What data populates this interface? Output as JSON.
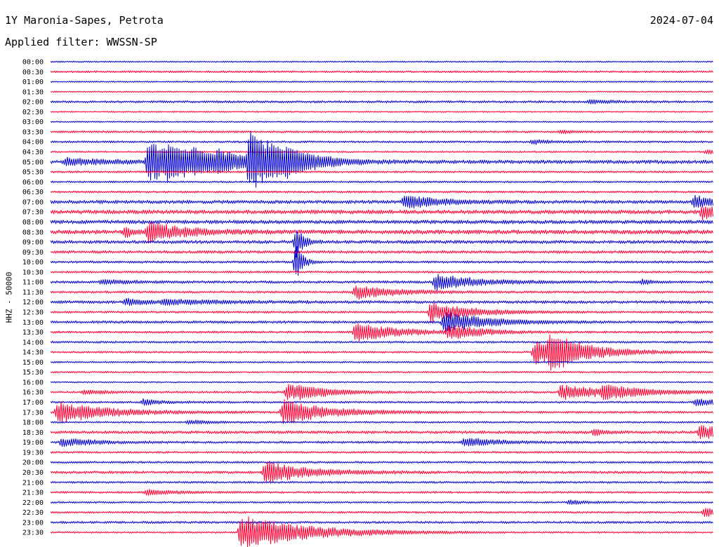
{
  "header": {
    "station": "1Y Maronia-Sapes, Petrota",
    "date": "2024-07-04",
    "filter": "Applied filter: WWSSN-SP",
    "scale": "HHZ - 50000"
  },
  "colors": {
    "even_row": "#0000cc",
    "odd_row": "#ff0033",
    "background": "#ffffff"
  },
  "chart_data": {
    "type": "helicorder",
    "channel": "HHZ",
    "row_duration_minutes": 30,
    "row_labels": [
      "00:00",
      "00:30",
      "01:00",
      "01:30",
      "02:00",
      "02:30",
      "03:00",
      "03:30",
      "04:00",
      "04:30",
      "05:00",
      "05:30",
      "06:00",
      "06:30",
      "07:00",
      "07:30",
      "08:00",
      "08:30",
      "09:00",
      "09:30",
      "10:00",
      "10:30",
      "11:00",
      "11:30",
      "12:00",
      "12:30",
      "13:00",
      "13:30",
      "14:00",
      "14:30",
      "15:00",
      "15:30",
      "16:00",
      "16:30",
      "17:00",
      "17:30",
      "18:00",
      "18:30",
      "19:00",
      "19:30",
      "20:00",
      "20:30",
      "21:00",
      "21:30",
      "22:00",
      "22:30",
      "23:00",
      "23:30"
    ],
    "row_colors": [
      "blue",
      "red"
    ],
    "noise_level": [
      1,
      1.4,
      1,
      1,
      1.6,
      1,
      1,
      1.5,
      1.4,
      1.2,
      2.6,
      1.4,
      1.3,
      1.5,
      2.4,
      2.8,
      2.6,
      3,
      2.3,
      2,
      1.6,
      1.5,
      1.8,
      1.6,
      2,
      1.5,
      1.8,
      1.6,
      1.5,
      1.4,
      1.2,
      1.2,
      1,
      1.5,
      1.4,
      1.6,
      1.3,
      2,
      1.6,
      1.4,
      1.5,
      1.8,
      1.5,
      1.4,
      1.3,
      1.4,
      1.6,
      1.2
    ],
    "events": [
      {
        "row": 4,
        "minute": 24.4,
        "amp": 2.5,
        "dur": 1.2
      },
      {
        "row": 7,
        "minute": 23.1,
        "amp": 2,
        "dur": 0.6
      },
      {
        "row": 8,
        "minute": 21.8,
        "amp": 3,
        "dur": 1
      },
      {
        "row": 9,
        "minute": 29.7,
        "amp": 3,
        "dur": 1.5
      },
      {
        "row": 10,
        "minute": 0.7,
        "amp": 5,
        "dur": 1.8
      },
      {
        "row": 10,
        "minute": 4.4,
        "amp": 30,
        "dur": 1.8
      },
      {
        "row": 10,
        "minute": 5.3,
        "amp": 12,
        "dur": 1.5
      },
      {
        "row": 10,
        "minute": 6.5,
        "amp": 9,
        "dur": 1.2
      },
      {
        "row": 10,
        "minute": 7.6,
        "amp": 8,
        "dur": 1.2
      },
      {
        "row": 10,
        "minute": 9,
        "amp": 40,
        "dur": 1.3
      },
      {
        "row": 10,
        "minute": 9.8,
        "amp": 10,
        "dur": 2
      },
      {
        "row": 10,
        "minute": 10.7,
        "amp": 5,
        "dur": 1.5
      },
      {
        "row": 14,
        "minute": 16,
        "amp": 10,
        "dur": 1.6
      },
      {
        "row": 14,
        "minute": 29.1,
        "amp": 8,
        "dur": 1.5
      },
      {
        "row": 15,
        "minute": 29.5,
        "amp": 10,
        "dur": 1.5
      },
      {
        "row": 17,
        "minute": 3.4,
        "amp": 8,
        "dur": 0.3
      },
      {
        "row": 17,
        "minute": 4.4,
        "amp": 14,
        "dur": 1.6
      },
      {
        "row": 18,
        "minute": 11.1,
        "amp": 25,
        "dur": 0.3
      },
      {
        "row": 20,
        "minute": 11.1,
        "amp": 30,
        "dur": 0.3
      },
      {
        "row": 22,
        "minute": 2.3,
        "amp": 3,
        "dur": 1.5
      },
      {
        "row": 22,
        "minute": 17.4,
        "amp": 12,
        "dur": 1.8
      },
      {
        "row": 22,
        "minute": 26.8,
        "amp": 4,
        "dur": 0.5
      },
      {
        "row": 23,
        "minute": 13.8,
        "amp": 10,
        "dur": 1.8
      },
      {
        "row": 24,
        "minute": 3.4,
        "amp": 5,
        "dur": 1
      },
      {
        "row": 24,
        "minute": 5.1,
        "amp": 3,
        "dur": 3
      },
      {
        "row": 25,
        "minute": 17.2,
        "amp": 14,
        "dur": 1.8
      },
      {
        "row": 26,
        "minute": 17.8,
        "amp": 16,
        "dur": 1.8
      },
      {
        "row": 27,
        "minute": 13.8,
        "amp": 14,
        "dur": 1.8
      },
      {
        "row": 27,
        "minute": 18,
        "amp": 10,
        "dur": 1.5
      },
      {
        "row": 29,
        "minute": 21.9,
        "amp": 18,
        "dur": 1.4
      },
      {
        "row": 29,
        "minute": 22.6,
        "amp": 20,
        "dur": 1.8
      },
      {
        "row": 33,
        "minute": 1.5,
        "amp": 3,
        "dur": 1
      },
      {
        "row": 33,
        "minute": 10.7,
        "amp": 12,
        "dur": 1.2
      },
      {
        "row": 33,
        "minute": 11.3,
        "amp": 5,
        "dur": 1.5
      },
      {
        "row": 33,
        "minute": 23.1,
        "amp": 12,
        "dur": 1.8
      },
      {
        "row": 33,
        "minute": 25,
        "amp": 8,
        "dur": 2
      },
      {
        "row": 34,
        "minute": 4.2,
        "amp": 4,
        "dur": 1
      },
      {
        "row": 34,
        "minute": 29.2,
        "amp": 5,
        "dur": 1.2
      },
      {
        "row": 35,
        "minute": 0.3,
        "amp": 16,
        "dur": 2.2
      },
      {
        "row": 35,
        "minute": 10.5,
        "amp": 18,
        "dur": 2
      },
      {
        "row": 36,
        "minute": 6.2,
        "amp": 3,
        "dur": 1
      },
      {
        "row": 37,
        "minute": 29.4,
        "amp": 10,
        "dur": 1.5
      },
      {
        "row": 37,
        "minute": 24.6,
        "amp": 5,
        "dur": 0.4
      },
      {
        "row": 38,
        "minute": 0.5,
        "amp": 6,
        "dur": 1.5
      },
      {
        "row": 38,
        "minute": 18.7,
        "amp": 7,
        "dur": 1.4
      },
      {
        "row": 41,
        "minute": 9.7,
        "amp": 16,
        "dur": 2
      },
      {
        "row": 43,
        "minute": 4.3,
        "amp": 4,
        "dur": 1.5
      },
      {
        "row": 44,
        "minute": 23.5,
        "amp": 3,
        "dur": 0.8
      },
      {
        "row": 45,
        "minute": 29.6,
        "amp": 6,
        "dur": 1
      },
      {
        "row": 47,
        "minute": 8.6,
        "amp": 25,
        "dur": 3
      }
    ]
  }
}
